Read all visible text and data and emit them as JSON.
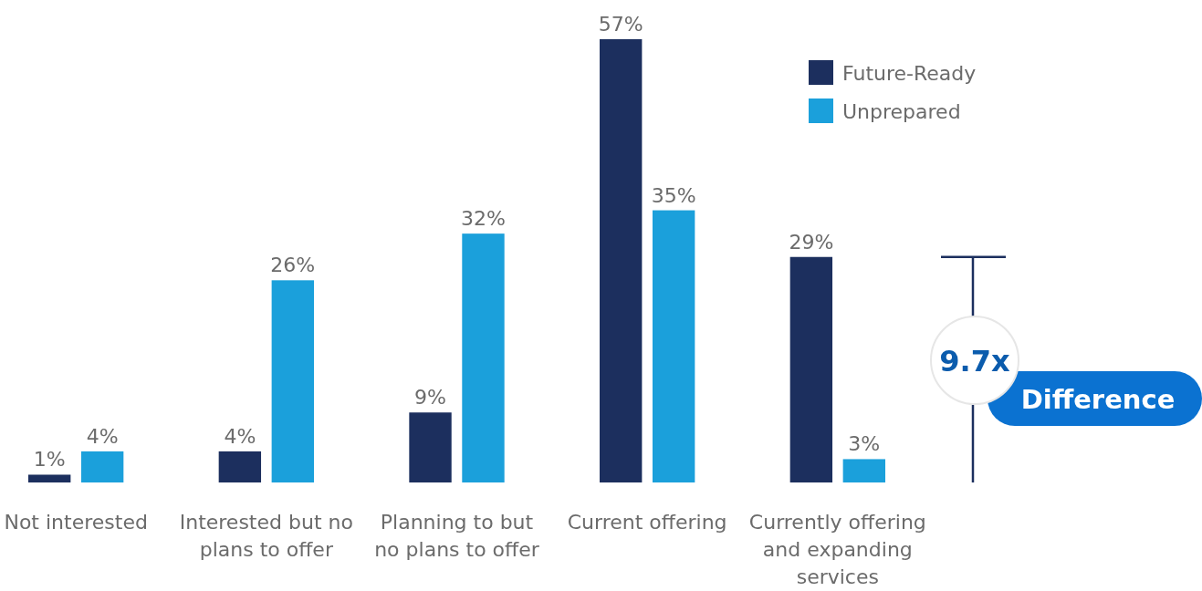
{
  "chart_data": {
    "type": "bar",
    "categories": [
      "Not interested",
      "Interested but no plans to offer",
      "Planning to but no plans to offer",
      "Current offering",
      "Currently offering and expanding services"
    ],
    "series": [
      {
        "name": "Future-Ready",
        "color": "#1c2f5e",
        "values": [
          1,
          4,
          9,
          57,
          29
        ],
        "value_labels": [
          "1%",
          "4%",
          "9%",
          "57%",
          "29%"
        ]
      },
      {
        "name": "Unprepared",
        "color": "#1ba0db",
        "values": [
          4,
          26,
          32,
          35,
          3
        ],
        "value_labels": [
          "4%",
          "26%",
          "32%",
          "35%",
          "3%"
        ]
      }
    ],
    "legend": "top right",
    "annotations": [
      "9.7x",
      "Difference"
    ]
  }
}
